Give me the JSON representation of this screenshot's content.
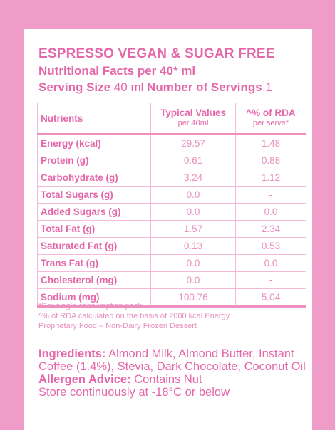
{
  "label": {
    "title": "ESPRESSO VEGAN & SUGAR FREE",
    "facts_line": "Nutritional Facts per 40* ml",
    "serving_size_label": "Serving Size",
    "serving_size_value": " 40 ml ",
    "servings_label": "Number of Servings",
    "servings_value": " 1"
  },
  "table": {
    "headers": {
      "nutrients": "Nutrients",
      "typical": "Typical Values",
      "typical_sub": "per 40ml",
      "rda": "^% of RDA",
      "rda_sub": "per serve*"
    },
    "rows": [
      {
        "name": "Energy (kcal)",
        "value": "29.57",
        "rda": "1.48"
      },
      {
        "name": "Protein (g)",
        "value": "0.61",
        "rda": "0.88"
      },
      {
        "name": "Carbohydrate (g)",
        "value": "3.24",
        "rda": "1.12"
      },
      {
        "name": "Total Sugars (g)",
        "value": "0.0",
        "rda": "-"
      },
      {
        "name": "Added Sugars (g)",
        "value": "0.0",
        "rda": "0.0"
      },
      {
        "name": "Total Fat (g)",
        "value": "1.57",
        "rda": "2.34"
      },
      {
        "name": "Saturated Fat (g)",
        "value": "0.13",
        "rda": "0.53"
      },
      {
        "name": "Trans Fat (g)",
        "value": "0.0",
        "rda": "0.0"
      },
      {
        "name": "Cholesterol (mg)",
        "value": "0.0",
        "rda": "-"
      },
      {
        "name": "Sodium (mg)",
        "value": "100.76",
        "rda": "5.04"
      }
    ]
  },
  "notes": {
    "line1": "*Per single consumption pack.",
    "line2": "^% of RDA calculated on the basis of 2000 kcal Energy.",
    "line3": "Proprietary Food – Non-Dairy Frozen Dessert"
  },
  "ingredients": {
    "label": "Ingredients:",
    "text": " Almond Milk, Almond Butter, Instant Coffee (1.4%), Stevia, Dark Chocolate, Coconut Oil",
    "allergen_label": "Allergen Advice:",
    "allergen_text": " Contains Nut",
    "storage": "Store continuously at -18°C or below"
  },
  "colors": {
    "background": "#ef9cc8",
    "card": "#ffffff",
    "text_pink": "#e467aa"
  }
}
